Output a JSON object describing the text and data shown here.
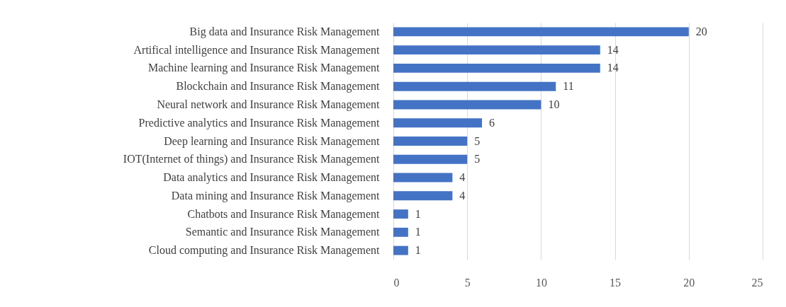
{
  "chart_data": {
    "type": "bar",
    "orientation": "horizontal",
    "categories": [
      "Big data and Insurance Risk Management",
      "Artifical intelligence and Insurance Risk Management",
      "Machine learning and Insurance Risk Management",
      "Blockchain and Insurance Risk Management",
      "Neural network and Insurance Risk Management",
      "Predictive analytics and Insurance Risk Management",
      "Deep learning and Insurance Risk Management",
      "IOT(Internet of things) and Insurance Risk Management",
      "Data analytics  and Insurance Risk Management",
      "Data mining and Insurance Risk Management",
      "Chatbots and Insurance Risk Management",
      "Semantic and Insurance Risk Management",
      "Cloud computing and Insurance Risk Management"
    ],
    "values": [
      20,
      14,
      14,
      11,
      10,
      6,
      5,
      5,
      4,
      4,
      1,
      1,
      1
    ],
    "color": "#4472c4",
    "xlim": [
      0,
      25
    ],
    "xticks": [
      0,
      5,
      10,
      15,
      20,
      25
    ],
    "grid": "x",
    "data_labels": true
  }
}
